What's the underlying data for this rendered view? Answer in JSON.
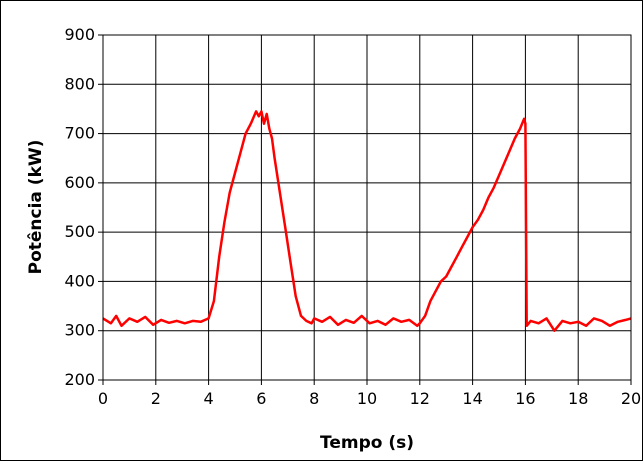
{
  "chart_data": {
    "type": "line",
    "xlabel": "Tempo (s)",
    "ylabel": "Potência (kW)",
    "xlim": [
      0,
      20
    ],
    "ylim": [
      200,
      900
    ],
    "xticks": [
      "0",
      "2",
      "4",
      "6",
      "8",
      "10",
      "12",
      "14",
      "16",
      "18",
      "20"
    ],
    "yticks": [
      "200",
      "300",
      "400",
      "500",
      "600",
      "700",
      "800",
      "900"
    ],
    "xtick_values": [
      0,
      2,
      4,
      6,
      8,
      10,
      12,
      14,
      16,
      18,
      20
    ],
    "ytick_values": [
      200,
      300,
      400,
      500,
      600,
      700,
      800,
      900
    ],
    "grid": true,
    "series": [
      {
        "color": "#ff0000",
        "x": [
          0,
          0.3,
          0.5,
          0.7,
          1.0,
          1.3,
          1.6,
          1.9,
          2.2,
          2.5,
          2.8,
          3.1,
          3.4,
          3.7,
          4.0,
          4.2,
          4.4,
          4.6,
          4.8,
          5.0,
          5.2,
          5.4,
          5.6,
          5.8,
          5.9,
          6.0,
          6.1,
          6.2,
          6.3,
          6.4,
          6.5,
          6.7,
          6.9,
          7.1,
          7.3,
          7.5,
          7.7,
          7.9,
          8.0,
          8.3,
          8.6,
          8.9,
          9.2,
          9.5,
          9.8,
          10.1,
          10.4,
          10.7,
          11.0,
          11.3,
          11.6,
          11.9,
          12.0,
          12.2,
          12.4,
          12.6,
          12.8,
          13.0,
          13.2,
          13.4,
          13.6,
          13.8,
          14.0,
          14.2,
          14.4,
          14.6,
          14.8,
          15.0,
          15.2,
          15.4,
          15.6,
          15.8,
          15.95,
          16.0,
          16.05,
          16.2,
          16.5,
          16.8,
          17.1,
          17.4,
          17.7,
          18.0,
          18.3,
          18.6,
          18.9,
          19.2,
          19.5,
          19.8,
          20.0
        ],
        "y": [
          325,
          315,
          330,
          310,
          325,
          318,
          328,
          312,
          322,
          316,
          320,
          315,
          320,
          318,
          325,
          360,
          450,
          520,
          580,
          620,
          660,
          700,
          720,
          745,
          735,
          745,
          720,
          740,
          710,
          690,
          650,
          580,
          510,
          440,
          370,
          330,
          320,
          315,
          325,
          318,
          328,
          312,
          322,
          316,
          330,
          315,
          320,
          312,
          325,
          318,
          322,
          310,
          315,
          330,
          360,
          380,
          400,
          410,
          430,
          450,
          470,
          490,
          510,
          525,
          545,
          570,
          590,
          615,
          640,
          665,
          690,
          710,
          730,
          720,
          310,
          320,
          315,
          325,
          300,
          320,
          315,
          318,
          310,
          325,
          320,
          310,
          318,
          322,
          325
        ]
      }
    ]
  }
}
